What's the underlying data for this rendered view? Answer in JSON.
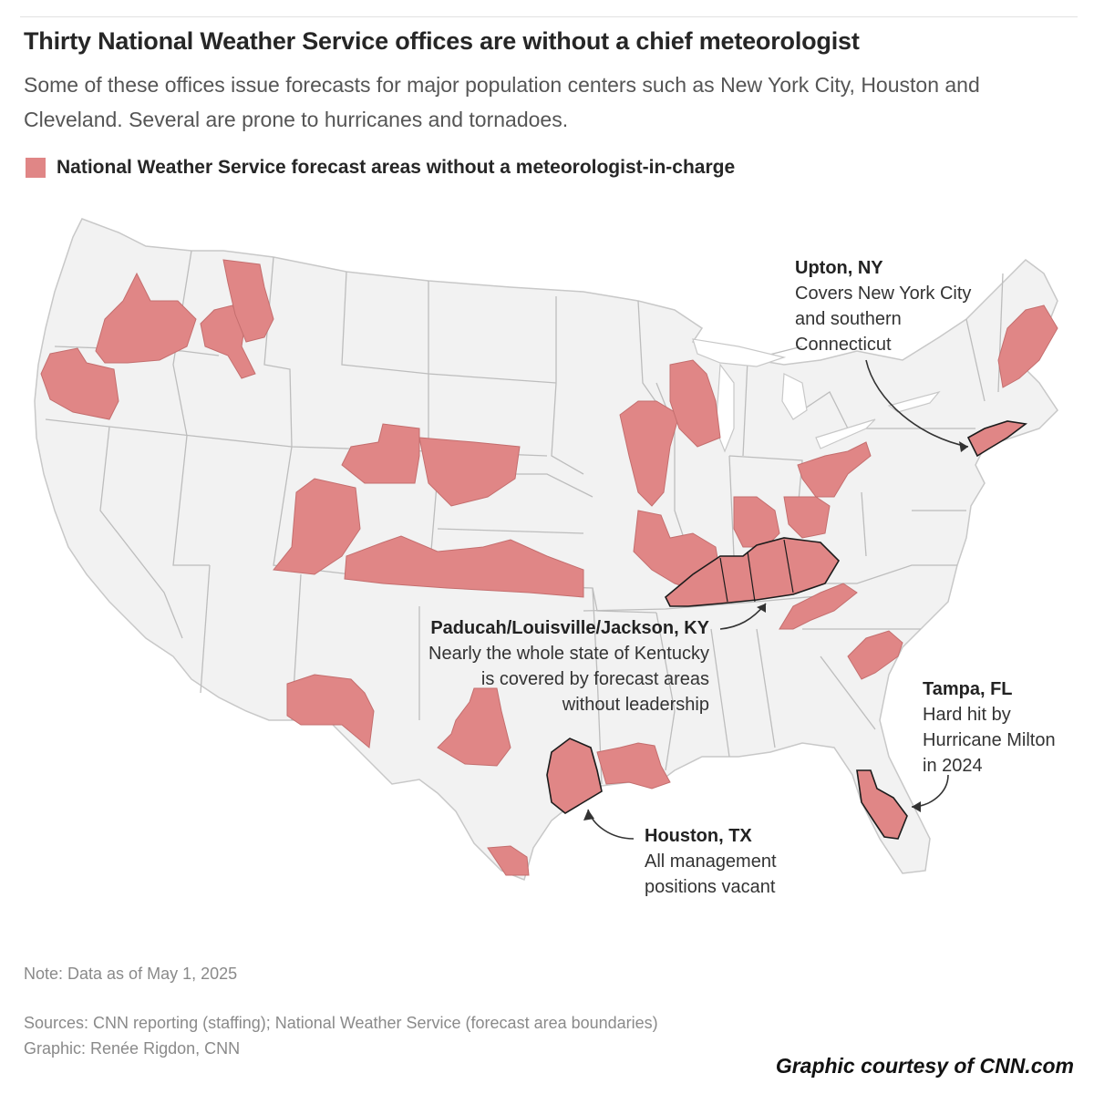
{
  "title": "Thirty National Weather Service offices are without a chief meteorologist",
  "subtitle": "Some of these offices issue forecasts for major population centers such as New York City, Houston and Cleveland. Several are prone to hurricanes and tornadoes.",
  "legend": {
    "label": "National Weather Service forecast areas without a meteorologist-in-charge",
    "color": "#e08686"
  },
  "map": {
    "land_color": "#f2f2f2",
    "border_color": "#bdbdbd",
    "highlight_color": "#e08686",
    "highlight_outline_color": "#1c1c1c"
  },
  "annotations": {
    "upton": {
      "title": "Upton, NY",
      "lines": [
        "Covers New York City",
        "and southern",
        "Connecticut"
      ]
    },
    "kentucky": {
      "title": "Paducah/Louisville/Jackson, KY",
      "lines": [
        "Nearly the whole state of Kentucky",
        "is covered by forecast areas",
        "without leadership"
      ]
    },
    "tampa": {
      "title": "Tampa, FL",
      "lines": [
        "Hard hit by",
        "Hurricane Milton",
        "in 2024"
      ]
    },
    "houston": {
      "title": "Houston, TX",
      "lines": [
        "All management",
        "positions vacant"
      ]
    }
  },
  "note": "Note: Data as of May 1, 2025",
  "sources": {
    "line1": "Sources: CNN reporting (staffing); National Weather Service (forecast area boundaries)",
    "line2": "Graphic: Renée Rigdon, CNN"
  },
  "courtesy": "Graphic courtesy of CNN.com"
}
